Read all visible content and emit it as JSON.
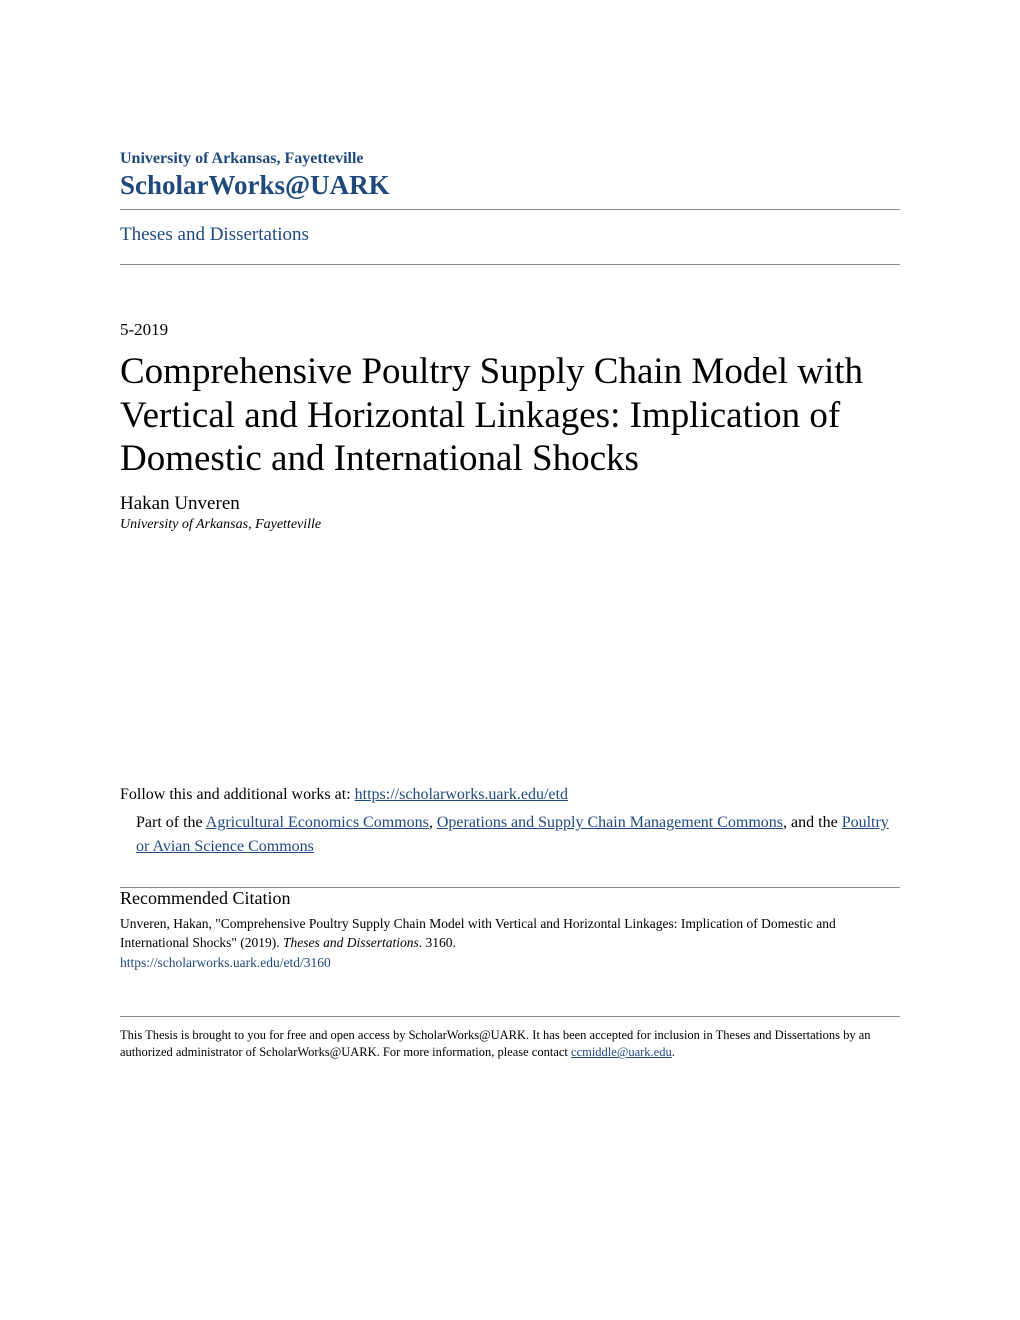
{
  "header": {
    "institution": "University of Arkansas, Fayetteville",
    "repository": "ScholarWorks@UARK",
    "collection": "Theses and Dissertations"
  },
  "document": {
    "date": "5-2019",
    "title": "Comprehensive Poultry Supply Chain Model with Vertical and Horizontal Linkages: Implication of Domestic and International Shocks",
    "author": "Hakan Unveren",
    "affiliation": "University of Arkansas, Fayetteville"
  },
  "follow": {
    "prefix": "Follow this and additional works at: ",
    "url": "https://scholarworks.uark.edu/etd",
    "part_prefix": "Part of the ",
    "link1": "Agricultural Economics Commons",
    "sep1": ", ",
    "link2": "Operations and Supply Chain Management Commons",
    "sep2": ", and the ",
    "link3": "Poultry or Avian Science Commons"
  },
  "citation": {
    "heading": "Recommended Citation",
    "text_part1": "Unveren, Hakan, \"Comprehensive Poultry Supply Chain Model with Vertical and Horizontal Linkages: Implication of Domestic and International Shocks\" (2019). ",
    "series": "Theses and Dissertations",
    "text_part2": ". 3160.",
    "url": "https://scholarworks.uark.edu/etd/3160"
  },
  "footer": {
    "text_part1": "This Thesis is brought to you for free and open access by ScholarWorks@UARK. It has been accepted for inclusion in Theses and Dissertations by an authorized administrator of ScholarWorks@UARK. For more information, please contact ",
    "email": "ccmiddle@uark.edu",
    "text_part2": "."
  },
  "colors": {
    "link_color": "#1f497d",
    "text_color": "#000000",
    "divider_color": "#888888",
    "background": "#ffffff"
  }
}
